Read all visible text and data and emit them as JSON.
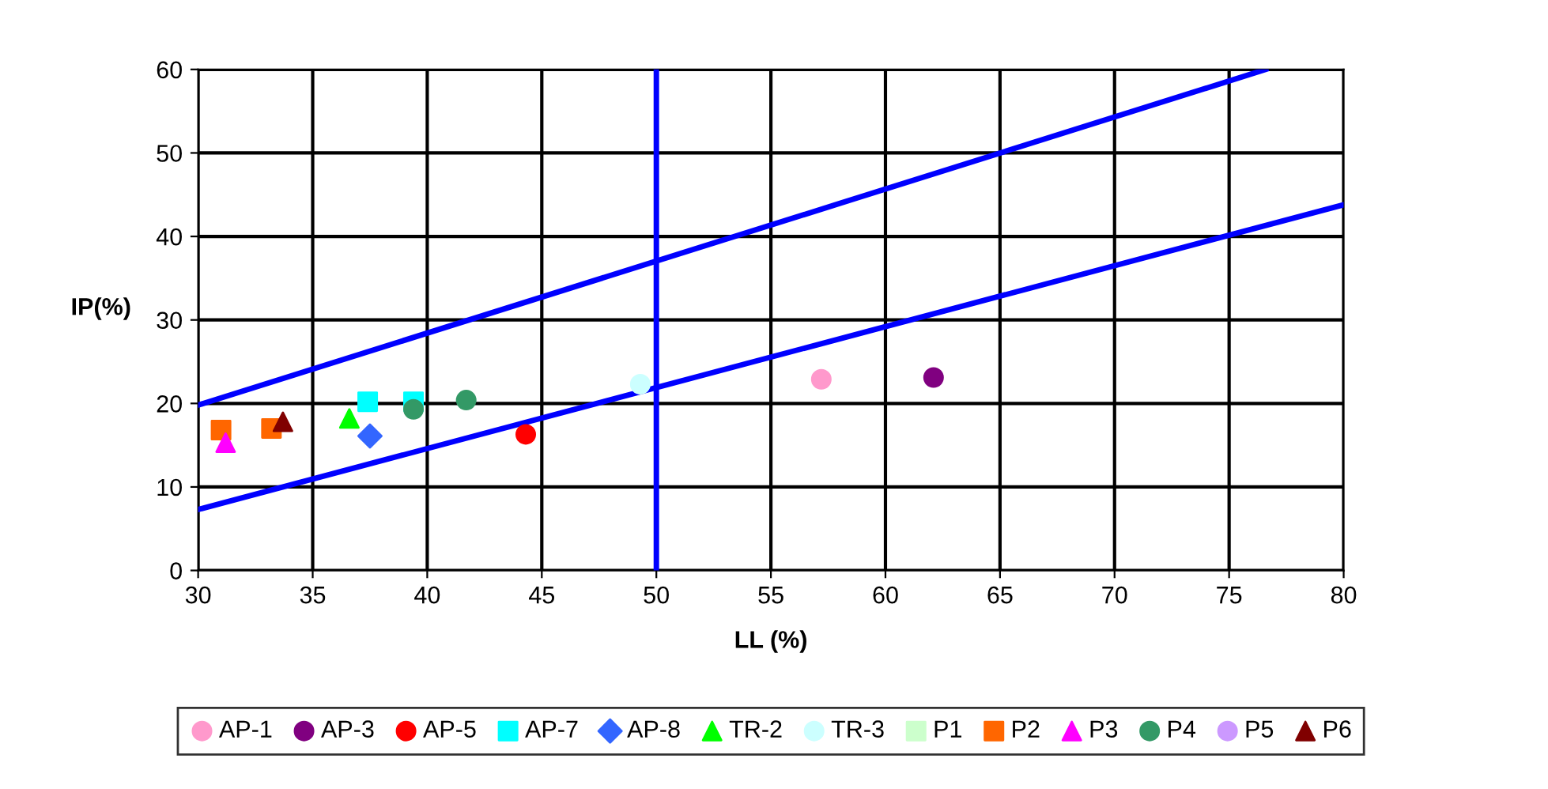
{
  "chart_data": {
    "type": "scatter",
    "xlabel": "LL (%)",
    "ylabel": "IP(%)",
    "xlim": [
      30,
      80
    ],
    "ylim": [
      0,
      60
    ],
    "xticks": [
      30,
      35,
      40,
      45,
      50,
      55,
      60,
      65,
      70,
      75,
      80
    ],
    "yticks": [
      0,
      10,
      20,
      30,
      40,
      50,
      60
    ],
    "grid": true,
    "legend": "bottom",
    "series": [
      {
        "name": "AP-1",
        "color": "#ff99cc",
        "marker": "circle",
        "x": [
          57.2
        ],
        "values": [
          22.9
        ]
      },
      {
        "name": "AP-3",
        "color": "#800080",
        "marker": "circle",
        "x": [
          62.1
        ],
        "values": [
          23.1
        ]
      },
      {
        "name": "AP-5",
        "color": "#ff0000",
        "marker": "circle",
        "x": [
          44.3
        ],
        "values": [
          16.3
        ]
      },
      {
        "name": "AP-7",
        "color": "#00ffff",
        "marker": "square",
        "x": [
          37.4,
          39.4
        ],
        "values": [
          20.2,
          20.2
        ]
      },
      {
        "name": "AP-8",
        "color": "#3366ff",
        "marker": "diamond",
        "x": [
          37.5
        ],
        "values": [
          16.1
        ]
      },
      {
        "name": "TR-2",
        "color": "#00ff00",
        "marker": "triangle",
        "x": [
          36.6
        ],
        "values": [
          18.2
        ]
      },
      {
        "name": "TR-3",
        "color": "#ccffff",
        "marker": "circle",
        "x": [
          49.3
        ],
        "values": [
          22.3
        ]
      },
      {
        "name": "P1",
        "color": "#ccffcc",
        "marker": "square",
        "x": [
          null
        ],
        "values": [
          null
        ]
      },
      {
        "name": "P2",
        "color": "#ff6600",
        "marker": "square",
        "x": [
          31.0,
          33.2
        ],
        "values": [
          16.8,
          17.0
        ]
      },
      {
        "name": "P3",
        "color": "#ff00ff",
        "marker": "triangle",
        "x": [
          31.2
        ],
        "values": [
          15.3
        ]
      },
      {
        "name": "P4",
        "color": "#339966",
        "marker": "circle",
        "x": [
          39.4,
          41.7
        ],
        "values": [
          19.3,
          20.4
        ]
      },
      {
        "name": "P5",
        "color": "#cc99ff",
        "marker": "circle",
        "x": [
          null
        ],
        "values": [
          null
        ]
      },
      {
        "name": "P6",
        "color": "#800000",
        "marker": "triangle",
        "x": [
          33.7
        ],
        "values": [
          17.8
        ]
      },
      {
        "type": "line",
        "color": "#0000ff",
        "x": [
          30,
          76.6
        ],
        "values": [
          19.8,
          60
        ]
      },
      {
        "type": "line",
        "color": "#0000ff",
        "x": [
          30,
          80
        ],
        "values": [
          7.3,
          43.8
        ]
      }
    ],
    "ref_lines": [
      {
        "axis": "x",
        "value": 50,
        "color": "#0000ff"
      }
    ]
  }
}
